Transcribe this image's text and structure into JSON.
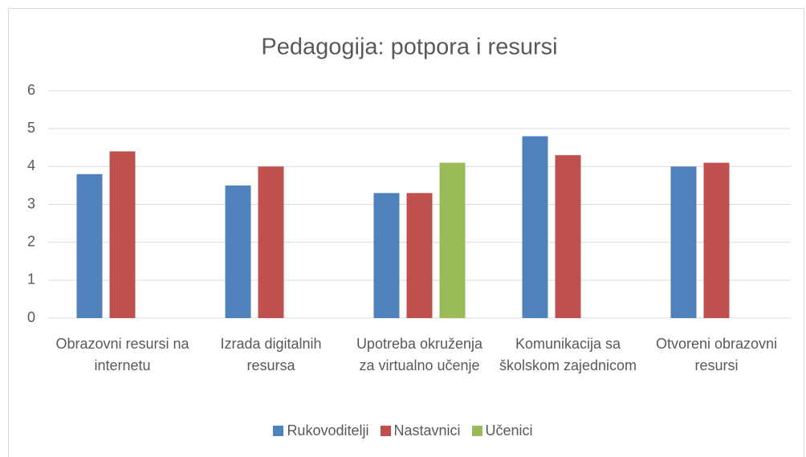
{
  "chart_data": {
    "type": "bar",
    "title": "Pedagogija: potpora i resursi",
    "categories": [
      "Obrazovni resursi na internetu",
      "Izrada digitalnih resursa",
      "Upotreba okruženja za virtualno učenje",
      "Komunikacija sa školskom zajednicom",
      "Otvoreni obrazovni resursi"
    ],
    "series": [
      {
        "name": "Rukovoditelji",
        "color": "#4f81bd",
        "values": [
          3.8,
          3.5,
          3.3,
          4.8,
          4.0
        ]
      },
      {
        "name": "Nastavnici",
        "color": "#c0504d",
        "values": [
          4.4,
          4.0,
          3.3,
          4.3,
          4.1
        ]
      },
      {
        "name": "Učenici",
        "color": "#9bbb59",
        "values": [
          null,
          null,
          4.1,
          null,
          null
        ]
      }
    ],
    "ylim": [
      0,
      6
    ],
    "yticks": [
      0,
      1,
      2,
      3,
      4,
      5,
      6
    ],
    "grid": true,
    "legend": "bottom"
  }
}
